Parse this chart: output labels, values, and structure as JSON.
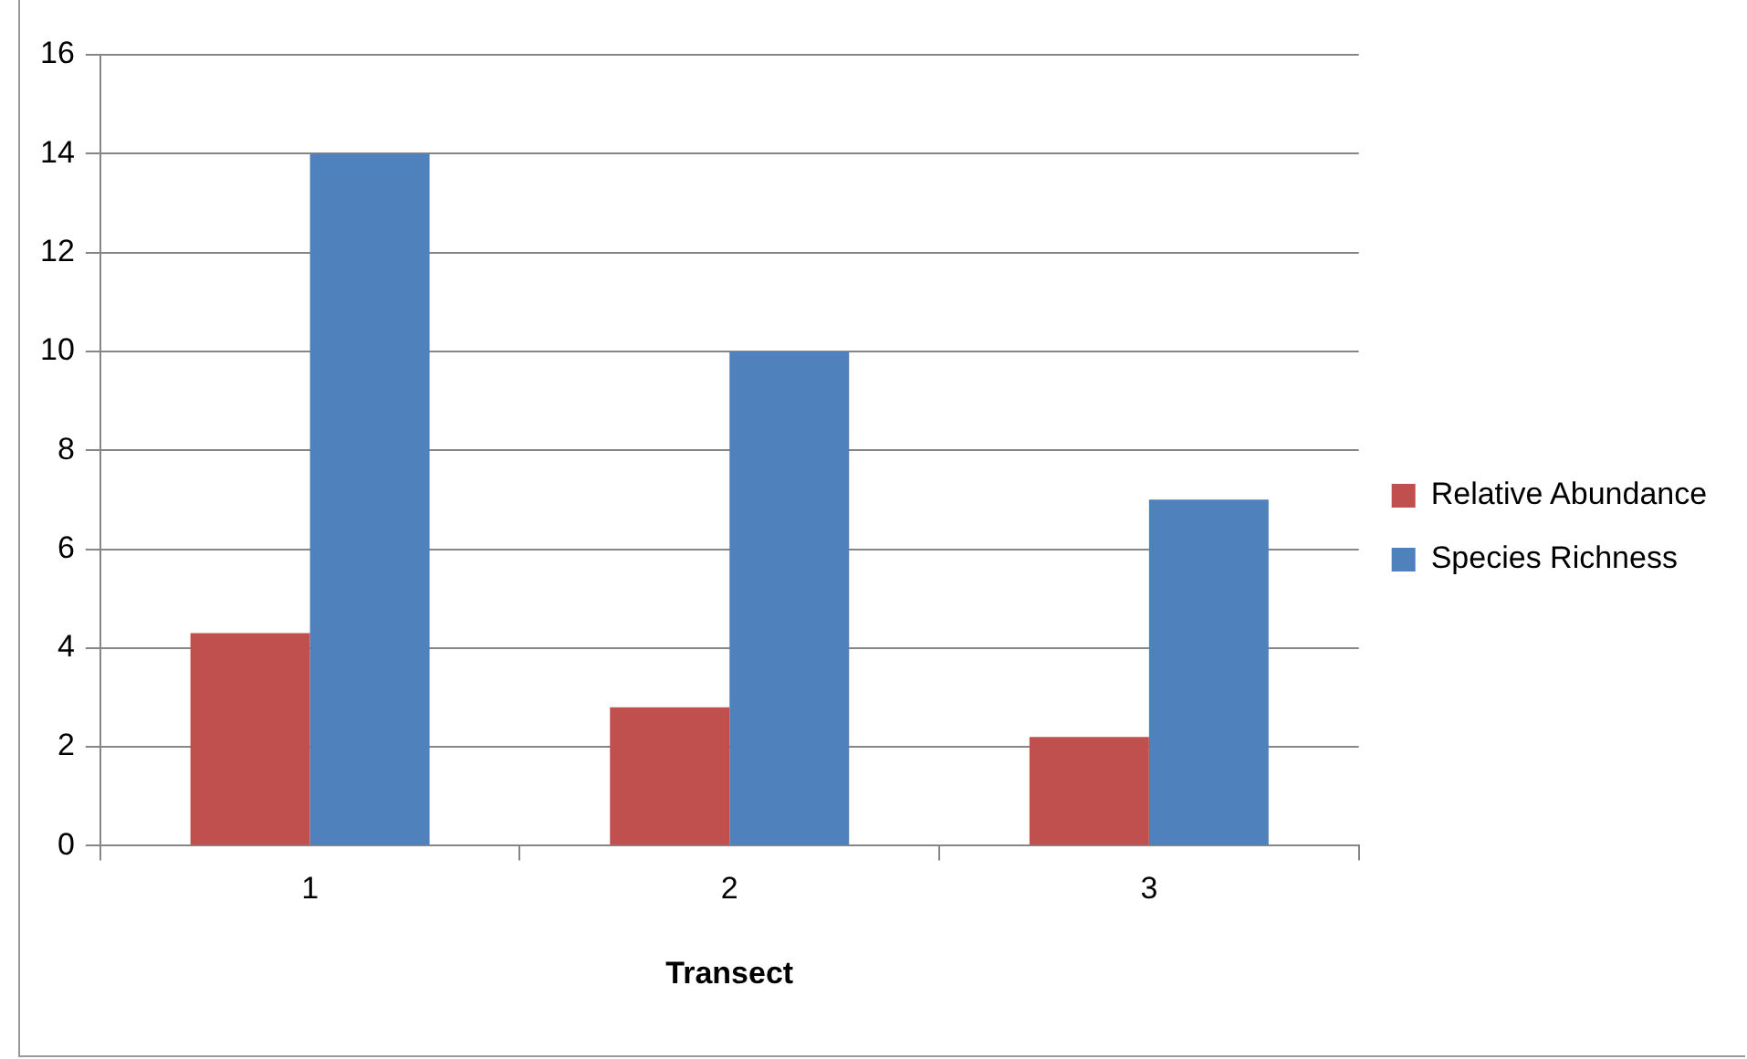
{
  "chart_data": {
    "type": "bar",
    "xlabel": "Transect",
    "categories": [
      "1",
      "2",
      "3"
    ],
    "series": [
      {
        "name": "Relative Abundance",
        "color": "#c0504d",
        "values": [
          4.3,
          2.8,
          2.2
        ]
      },
      {
        "name": "Species Richness",
        "color": "#4f81bd",
        "values": [
          14,
          10,
          7
        ]
      }
    ],
    "ylim": [
      0,
      16
    ],
    "yticks": [
      0,
      2,
      4,
      6,
      8,
      10,
      12,
      14,
      16
    ],
    "grid": "y",
    "legend": "right"
  }
}
